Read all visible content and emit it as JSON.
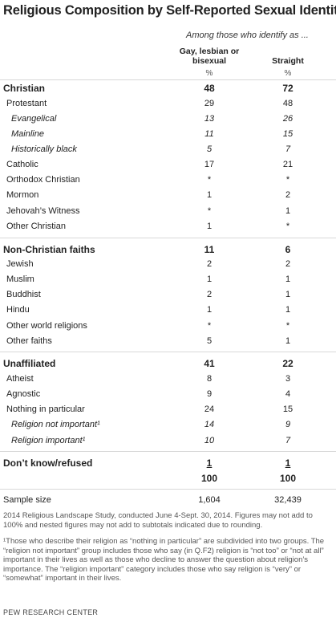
{
  "title": "Religious Composition by Self-Reported Sexual Identity",
  "subhead": "Among those who identify as ...",
  "columns": {
    "col1_line1": "Gay, lesbian or",
    "col1_line2": "bisexual",
    "col2": "Straight",
    "unit": "%"
  },
  "rows": [
    {
      "label": "Christian",
      "v1": "48",
      "v2": "72"
    },
    {
      "label": "Protestant",
      "v1": "29",
      "v2": "48"
    },
    {
      "label": "Evangelical",
      "v1": "13",
      "v2": "26"
    },
    {
      "label": "Mainline",
      "v1": "11",
      "v2": "15"
    },
    {
      "label": "Historically black",
      "v1": "5",
      "v2": "7"
    },
    {
      "label": "Catholic",
      "v1": "17",
      "v2": "21"
    },
    {
      "label": "Orthodox Christian",
      "v1": "*",
      "v2": "*"
    },
    {
      "label": "Mormon",
      "v1": "1",
      "v2": "2"
    },
    {
      "label": "Jehovah’s Witness",
      "v1": "*",
      "v2": "1"
    },
    {
      "label": "Other Christian",
      "v1": "1",
      "v2": "*"
    },
    {
      "label": "Non-Christian faiths",
      "v1": "11",
      "v2": "6"
    },
    {
      "label": "Jewish",
      "v1": "2",
      "v2": "2"
    },
    {
      "label": "Muslim",
      "v1": "1",
      "v2": "1"
    },
    {
      "label": "Buddhist",
      "v1": "2",
      "v2": "1"
    },
    {
      "label": "Hindu",
      "v1": "1",
      "v2": "1"
    },
    {
      "label": "Other world religions",
      "v1": "*",
      "v2": "*"
    },
    {
      "label": "Other faiths",
      "v1": "5",
      "v2": "1"
    },
    {
      "label": "Unaffiliated",
      "v1": "41",
      "v2": "22"
    },
    {
      "label": "Atheist",
      "v1": "8",
      "v2": "3"
    },
    {
      "label": "Agnostic",
      "v1": "9",
      "v2": "4"
    },
    {
      "label": "Nothing in particular",
      "v1": "24",
      "v2": "15"
    },
    {
      "label": "Religion not important¹",
      "v1": "14",
      "v2": "9"
    },
    {
      "label": "Religion important¹",
      "v1": "10",
      "v2": "7"
    },
    {
      "label": "Don’t know/refused",
      "v1": "1",
      "v2": "1"
    },
    {
      "label": "",
      "v1": "100",
      "v2": "100"
    },
    {
      "label": "Sample size",
      "v1": "1,604",
      "v2": "32,439"
    }
  ],
  "notes": {
    "main": "2014 Religious Landscape Study, conducted June 4-Sept. 30, 2014. Figures may not add to 100% and nested figures may not add to subtotals indicated due to rounding.",
    "footnote": "¹Those who describe their religion as “nothing in particular” are subdivided into two groups. The “religion not important” group includes those who say (in Q.F2) religion is “not too” or “not at all” important in their lives as well as those who decline to answer the question about religion’s importance. The “religion important” category includes those who say religion is “very” or “somewhat” important in their lives."
  },
  "source": "PEW RESEARCH CENTER"
}
